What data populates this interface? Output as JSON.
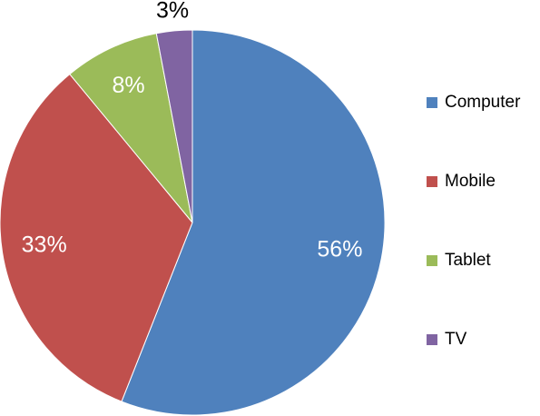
{
  "chart_data": {
    "type": "pie",
    "categories": [
      "Computer",
      "Mobile",
      "Tablet",
      "TV"
    ],
    "values": [
      56,
      33,
      8,
      3
    ],
    "value_labels": [
      "56%",
      "33%",
      "8%",
      "3%"
    ],
    "colors": [
      "#4f81bd",
      "#c0504d",
      "#9bbb59",
      "#8064a2"
    ],
    "legend": "right"
  }
}
